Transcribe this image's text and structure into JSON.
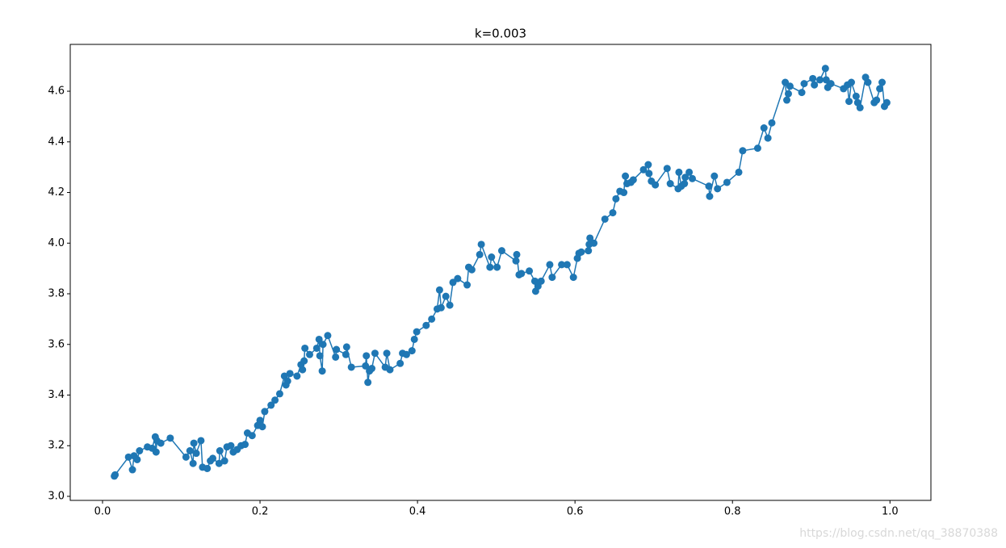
{
  "chart_data": {
    "type": "scatter-line",
    "title": "k=0.003",
    "color": "#1f77b4",
    "watermark": "https://blog.csdn.net/qq_38870388",
    "xlim": [
      -0.041,
      1.052
    ],
    "ylim": [
      2.984,
      4.785
    ],
    "xticks": [
      {
        "value": 0.0,
        "label": "0.0"
      },
      0.2,
      0.4,
      0.6,
      0.8,
      {
        "value": 1.0,
        "label": "1.0"
      }
    ],
    "yticks": [
      {
        "value": 3.0,
        "label": "3.0"
      },
      3.2,
      3.4,
      3.6,
      3.8,
      {
        "value": 4.0,
        "label": "4.0"
      },
      4.2,
      4.4,
      4.6
    ],
    "x": [
      0.015,
      0.016,
      0.033,
      0.038,
      0.04,
      0.044,
      0.047,
      0.057,
      0.063,
      0.067,
      0.068,
      0.069,
      0.074,
      0.086,
      0.106,
      0.111,
      0.115,
      0.116,
      0.119,
      0.125,
      0.127,
      0.133,
      0.137,
      0.14,
      0.148,
      0.149,
      0.155,
      0.158,
      0.163,
      0.166,
      0.171,
      0.176,
      0.181,
      0.184,
      0.19,
      0.197,
      0.2,
      0.203,
      0.206,
      0.214,
      0.219,
      0.225,
      0.231,
      0.233,
      0.235,
      0.238,
      0.247,
      0.252,
      0.254,
      0.256,
      0.257,
      0.263,
      0.272,
      0.275,
      0.276,
      0.279,
      0.28,
      0.286,
      0.296,
      0.297,
      0.309,
      0.31,
      0.316,
      0.334,
      0.335,
      0.337,
      0.339,
      0.342,
      0.346,
      0.359,
      0.361,
      0.365,
      0.378,
      0.381,
      0.386,
      0.393,
      0.396,
      0.399,
      0.411,
      0.418,
      0.425,
      0.428,
      0.43,
      0.436,
      0.441,
      0.445,
      0.451,
      0.463,
      0.465,
      0.469,
      0.479,
      0.481,
      0.492,
      0.494,
      0.501,
      0.507,
      0.525,
      0.526,
      0.529,
      0.532,
      0.542,
      0.549,
      0.55,
      0.553,
      0.557,
      0.568,
      0.571,
      0.583,
      0.59,
      0.598,
      0.603,
      0.605,
      0.608,
      0.617,
      0.618,
      0.619,
      0.624,
      0.638,
      0.648,
      0.652,
      0.657,
      0.662,
      0.664,
      0.666,
      0.671,
      0.674,
      0.687,
      0.693,
      0.694,
      0.697,
      0.702,
      0.717,
      0.721,
      0.731,
      0.732,
      0.735,
      0.739,
      0.74,
      0.745,
      0.749,
      0.77,
      0.771,
      0.777,
      0.781,
      0.793,
      0.808,
      0.813,
      0.832,
      0.84,
      0.845,
      0.85,
      0.867,
      0.869,
      0.871,
      0.873,
      0.888,
      0.891,
      0.902,
      0.904,
      0.911,
      0.918,
      0.919,
      0.921,
      0.925,
      0.941,
      0.946,
      0.948,
      0.951,
      0.957,
      0.959,
      0.962,
      0.969,
      0.972,
      0.98,
      0.983,
      0.987,
      0.99,
      0.993,
      0.996
    ],
    "values": [
      3.08,
      3.085,
      3.155,
      3.105,
      3.16,
      3.145,
      3.18,
      3.195,
      3.19,
      3.235,
      3.175,
      3.22,
      3.21,
      3.23,
      3.155,
      3.18,
      3.13,
      3.21,
      3.17,
      3.22,
      3.115,
      3.11,
      3.14,
      3.15,
      3.13,
      3.18,
      3.14,
      3.195,
      3.2,
      3.175,
      3.185,
      3.2,
      3.205,
      3.25,
      3.24,
      3.28,
      3.3,
      3.275,
      3.335,
      3.36,
      3.38,
      3.405,
      3.475,
      3.44,
      3.455,
      3.485,
      3.475,
      3.52,
      3.5,
      3.535,
      3.585,
      3.56,
      3.585,
      3.62,
      3.555,
      3.495,
      3.6,
      3.635,
      3.55,
      3.58,
      3.56,
      3.59,
      3.51,
      3.515,
      3.555,
      3.45,
      3.495,
      3.505,
      3.565,
      3.51,
      3.565,
      3.5,
      3.525,
      3.565,
      3.56,
      3.575,
      3.62,
      3.65,
      3.675,
      3.7,
      3.74,
      3.815,
      3.745,
      3.79,
      3.755,
      3.845,
      3.86,
      3.835,
      3.905,
      3.895,
      3.955,
      3.995,
      3.905,
      3.945,
      3.905,
      3.97,
      3.93,
      3.955,
      3.875,
      3.88,
      3.89,
      3.85,
      3.81,
      3.83,
      3.85,
      3.915,
      3.865,
      3.915,
      3.915,
      3.865,
      3.94,
      3.96,
      3.965,
      3.97,
      3.995,
      4.02,
      4.0,
      4.095,
      4.12,
      4.175,
      4.205,
      4.2,
      4.265,
      4.235,
      4.24,
      4.25,
      4.29,
      4.31,
      4.275,
      4.245,
      4.23,
      4.295,
      4.235,
      4.215,
      4.28,
      4.225,
      4.235,
      4.26,
      4.28,
      4.255,
      4.225,
      4.185,
      4.265,
      4.215,
      4.24,
      4.28,
      4.365,
      4.375,
      4.455,
      4.415,
      4.475,
      4.635,
      4.565,
      4.59,
      4.62,
      4.595,
      4.63,
      4.65,
      4.625,
      4.645,
      4.69,
      4.645,
      4.615,
      4.63,
      4.61,
      4.625,
      4.56,
      4.635,
      4.58,
      4.555,
      4.535,
      4.655,
      4.635,
      4.555,
      4.565,
      4.61,
      4.635,
      4.54,
      4.555
    ]
  }
}
